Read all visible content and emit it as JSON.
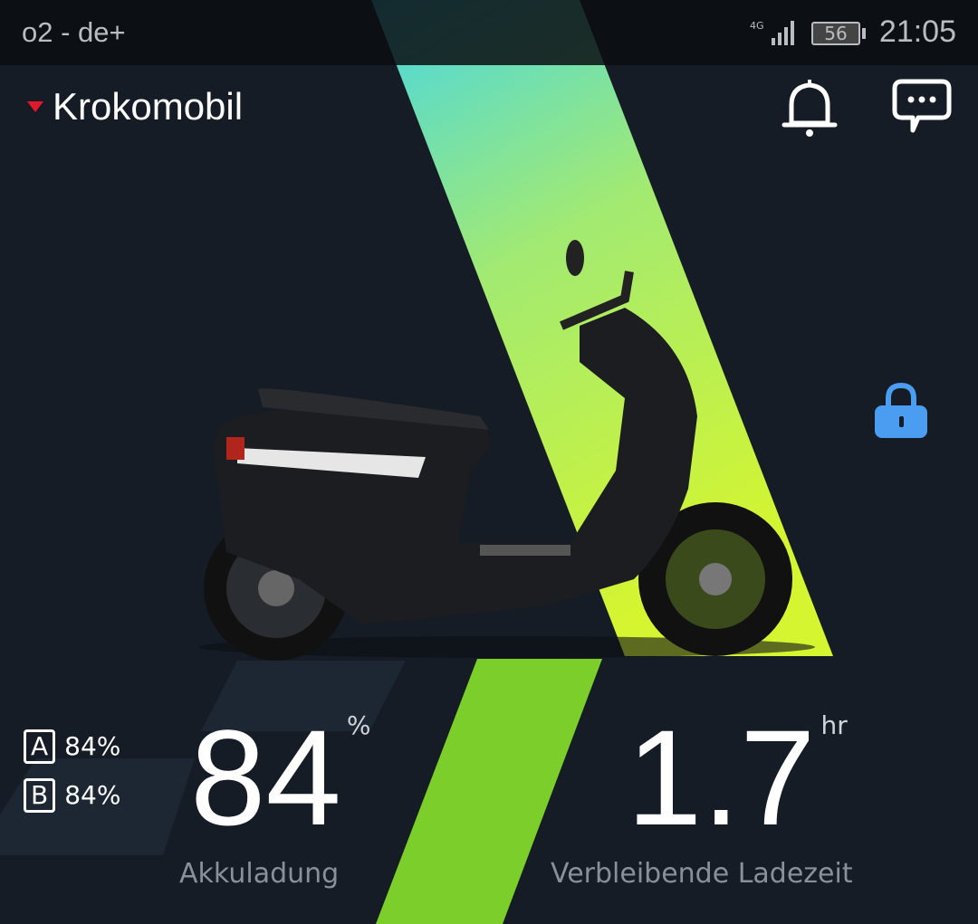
{
  "status_bar": {
    "carrier": "o2 - de+",
    "network": "4G",
    "battery": "56",
    "time": "21:05"
  },
  "header": {
    "vehicle_name": "Krokomobil"
  },
  "icons": {
    "notifications": "bell-icon",
    "messages": "chat-icon",
    "lock": "lock-icon",
    "lock_color": "#4a9df0"
  },
  "battery": {
    "a_label": "A",
    "a_value": "84%",
    "b_label": "B",
    "b_value": "84%",
    "total": "84",
    "unit": "%",
    "label": "Akkuladung"
  },
  "charge": {
    "value": "1.7",
    "unit": "hr",
    "label": "Verbleibende Ladezeit"
  },
  "colors": {
    "background": "#151c25",
    "accent_green": "#7ccf2a",
    "accent_cyan": "#4fd8e0",
    "alert_red": "#e3192b"
  }
}
